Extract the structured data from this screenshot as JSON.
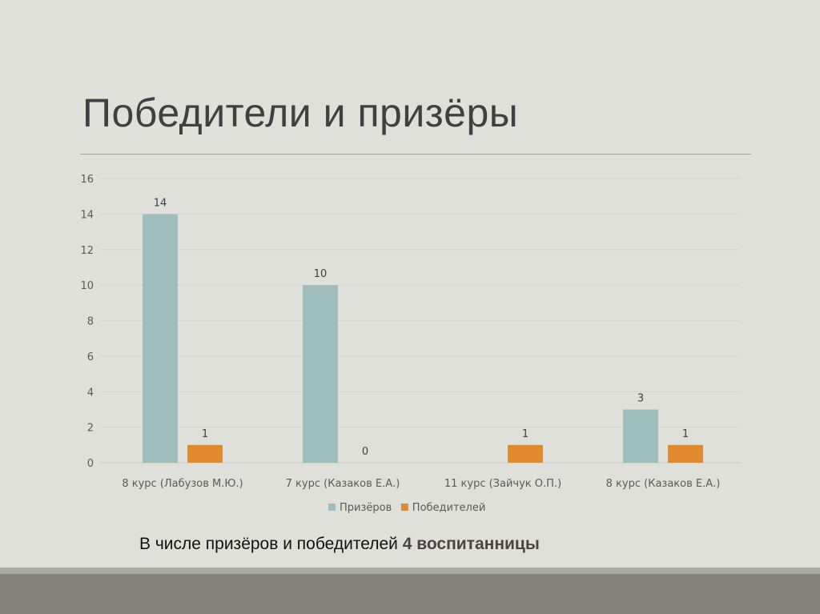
{
  "slide": {
    "title": "Победители и призёры",
    "note_text": "В числе призёров и победителей ",
    "note_bold": "4 воспитанницы"
  },
  "chart_data": {
    "type": "bar",
    "categories": [
      "8 курс (Лабузов М.Ю.)",
      "7 курс (Казаков Е.А.)",
      "11 курс (Зайчук О.П.)",
      "8 курс (Казаков Е.А.)"
    ],
    "series": [
      {
        "name": "Призёров",
        "values": [
          14,
          10,
          null,
          3
        ],
        "color": "#9fbfbe"
      },
      {
        "name": "Победителей",
        "values": [
          1,
          0,
          1,
          1
        ],
        "color": "#e0892f"
      }
    ],
    "ylim": [
      0,
      16
    ],
    "yticks": [
      0,
      2,
      4,
      6,
      8,
      10,
      12,
      14,
      16
    ],
    "grid": true,
    "data_labels": true,
    "legend": "bottom"
  }
}
